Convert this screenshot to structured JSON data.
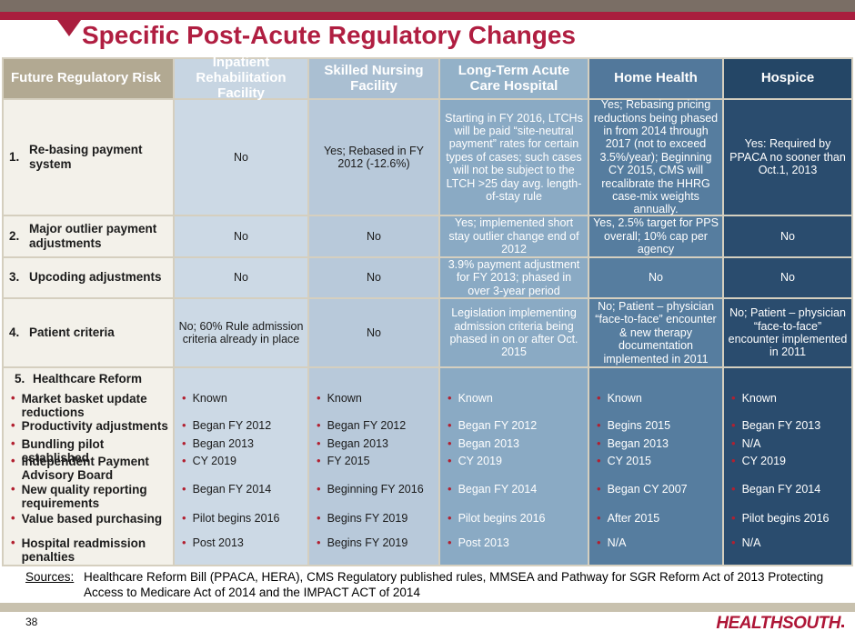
{
  "slide": {
    "title": "Specific Post-Acute Regulatory Changes",
    "page_number": "38",
    "logo_text": "HEALTHSOUTH"
  },
  "colors": {
    "top_band": "#7a6e65",
    "crimson_band": "#a91e3e",
    "title_text": "#b01e41",
    "risk_header_bg": "#b2a992",
    "risk_cell_bg": "#f3f1ea",
    "irf_bg": "#ccd9e5",
    "snf_bg": "#b8c9da",
    "ltch_bg": "#8aaac4",
    "home_health_bg": "#567d9f",
    "hospice_bg": "#2a4c6e",
    "grid_border": "#d5cfbf",
    "bullet_red": "#b22030",
    "footer_band": "#c8c1ae",
    "logo_red": "#ae1536"
  },
  "table": {
    "columns": [
      "Future Regulatory Risk",
      "Inpatient Rehabilitation Facility",
      "Skilled Nursing Facility",
      "Long-Term Acute Care Hospital",
      "Home Health",
      "Hospice"
    ],
    "rows": [
      {
        "num": "1.",
        "risk": "Re-basing payment system",
        "irf": "No",
        "snf": "Yes; Rebased in FY 2012 (-12.6%)",
        "ltch": "Starting in FY 2016, LTCHs will be paid “site-neutral payment” rates for certain types of cases; such cases will not be subject to the LTCH >25 day avg. length-of-stay rule",
        "hh": "Yes; Rebasing pricing reductions being phased in from 2014 through 2017 (not to exceed 3.5%/year); Beginning CY 2015, CMS will recalibrate the HHRG case-mix weights annually.",
        "hospice": "Yes: Required by PPACA no sooner than Oct.1, 2013"
      },
      {
        "num": "2.",
        "risk": "Major outlier payment adjustments",
        "irf": "No",
        "snf": "No",
        "ltch": "Yes; implemented short stay outlier change end of 2012",
        "hh": "Yes, 2.5% target for PPS overall; 10% cap per agency",
        "hospice": "No"
      },
      {
        "num": "3.",
        "risk": "Upcoding adjustments",
        "irf": "No",
        "snf": "No",
        "ltch": "3.9% payment adjustment for FY 2013; phased in over 3-year period",
        "hh": "No",
        "hospice": "No"
      },
      {
        "num": "4.",
        "risk": "Patient criteria",
        "irf": "No; 60% Rule admission criteria already in place",
        "snf": "No",
        "ltch": "Legislation implementing admission criteria being phased in on or after Oct. 2015",
        "hh": "No; Patient – physician “face-to-face” encounter & new therapy documentation implemented in 2011",
        "hospice": "No; Patient – physician “face-to-face” encounter implemented in 2011"
      }
    ],
    "reform": {
      "num": "5.",
      "heading": "Healthcare Reform",
      "items": [
        {
          "label": "Market basket update reductions",
          "irf": "Known",
          "snf": "Known",
          "ltch": "Known",
          "hh": "Known",
          "hospice": "Known"
        },
        {
          "label": "Productivity adjustments",
          "irf": "Began FY 2012",
          "snf": "Began FY 2012",
          "ltch": "Began FY 2012",
          "hh": "Begins 2015",
          "hospice": "Began FY 2013"
        },
        {
          "label": "Bundling pilot established",
          "irf": "Began 2013",
          "snf": "Began 2013",
          "ltch": "Began 2013",
          "hh": "Began 2013",
          "hospice": "N/A"
        },
        {
          "label": "Independent Payment Advisory Board",
          "irf": "CY 2019",
          "snf": "FY 2015",
          "ltch": "CY 2019",
          "hh": "CY 2015",
          "hospice": "CY 2019"
        },
        {
          "label": "New quality reporting requirements",
          "irf": "Began FY 2014",
          "snf": "Beginning FY 2016",
          "ltch": "Began FY 2014",
          "hh": "Began CY 2007",
          "hospice": "Began FY 2014"
        },
        {
          "label": "Value based purchasing",
          "irf": "Pilot begins 2016",
          "snf": "Begins FY 2019",
          "ltch": "Pilot begins 2016",
          "hh": "After 2015",
          "hospice": "Pilot begins 2016"
        },
        {
          "label": "Hospital readmission penalties",
          "irf": "Post 2013",
          "snf": "Begins FY 2019",
          "ltch": "Post 2013",
          "hh": "N/A",
          "hospice": "N/A"
        }
      ]
    }
  },
  "sources": {
    "label": "Sources:",
    "text": "Healthcare Reform Bill (PPACA, HERA), CMS Regulatory published rules, MMSEA and Pathway for SGR Reform Act of 2013 Protecting Access to Medicare Act of 2014 and the IMPACT ACT of 2014"
  }
}
